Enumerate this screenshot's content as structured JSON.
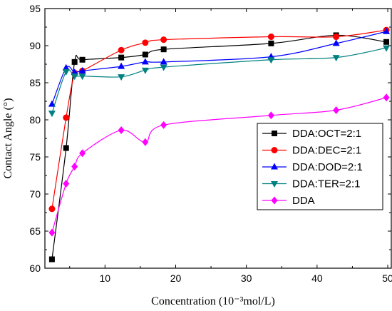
{
  "chart_data": {
    "type": "line",
    "xlabel": "Concentration (10⁻³mol/L)",
    "ylabel": "Contact Angle (°)",
    "xlim": [
      1.5,
      50.5
    ],
    "ylim": [
      60,
      95
    ],
    "x_ticks": [
      "10",
      "20",
      "30",
      "40",
      "50"
    ],
    "y_ticks": [
      "60",
      "65",
      "70",
      "75",
      "80",
      "85",
      "90",
      "95"
    ],
    "legend_position": "right",
    "grid": false,
    "series": [
      {
        "name": "DDA:OCT=2:1",
        "color": "#000000",
        "marker": "square",
        "x": [
          2.5,
          4.5,
          5.7,
          6.8,
          12.3,
          15.7,
          18.3,
          33.5,
          42.7,
          49.8
        ],
        "y": [
          61.2,
          76.2,
          87.8,
          88.1,
          88.4,
          88.8,
          89.5,
          90.3,
          91.4,
          90.5
        ]
      },
      {
        "name": "DDA:DEC=2:1",
        "color": "#ff0000",
        "marker": "circle",
        "x": [
          2.5,
          4.5,
          5.7,
          6.8,
          12.3,
          15.7,
          18.3,
          33.5,
          42.7,
          49.8
        ],
        "y": [
          68.0,
          80.3,
          86.2,
          86.6,
          89.4,
          90.4,
          90.8,
          91.2,
          91.2,
          92.1
        ]
      },
      {
        "name": "DDA:DOD=2:1",
        "color": "#0000ff",
        "marker": "triangle-up",
        "x": [
          2.5,
          4.5,
          5.7,
          6.8,
          12.3,
          15.7,
          18.3,
          33.5,
          42.7,
          49.8
        ],
        "y": [
          82.1,
          87.0,
          86.4,
          86.6,
          87.2,
          87.8,
          87.8,
          88.5,
          90.3,
          91.9
        ]
      },
      {
        "name": "DDA:TER=2:1",
        "color": "#008080",
        "marker": "triangle-down",
        "x": [
          2.5,
          4.5,
          5.7,
          6.8,
          12.3,
          15.7,
          18.3,
          33.5,
          42.7,
          49.8
        ],
        "y": [
          80.9,
          86.5,
          85.9,
          85.9,
          85.8,
          86.7,
          87.1,
          88.1,
          88.4,
          89.7
        ]
      },
      {
        "name": "DDA",
        "color": "#ff00ff",
        "marker": "diamond",
        "x": [
          2.5,
          4.5,
          5.7,
          6.8,
          12.3,
          15.7,
          18.3,
          33.5,
          42.7,
          49.8
        ],
        "y": [
          64.8,
          71.4,
          73.7,
          75.5,
          78.6,
          77.0,
          79.3,
          80.6,
          81.3,
          83.0
        ]
      }
    ]
  }
}
